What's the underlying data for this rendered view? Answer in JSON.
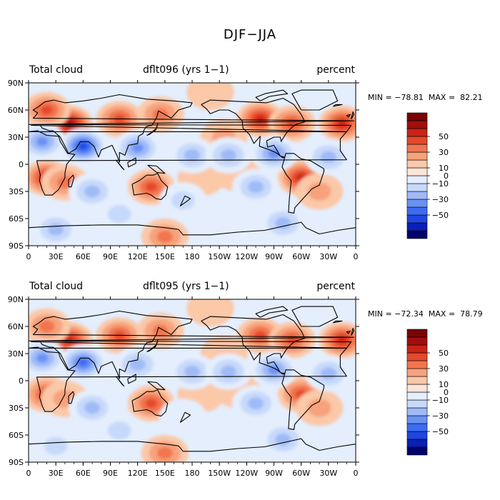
{
  "figure": {
    "title": "DJF−JJA"
  },
  "chart_data": [
    {
      "type": "heatmap",
      "panel": "top",
      "left_label": "Total cloud",
      "center_label": "dflt096 (yrs 1−1)",
      "right_label": "percent",
      "min_label": "MIN = −78.81",
      "max_label": "MAX =  82.21",
      "min": -78.81,
      "max": 82.21,
      "x_ticks": [
        "0",
        "30E",
        "60E",
        "90E",
        "120E",
        "150E",
        "180",
        "150W",
        "120W",
        "90W",
        "60W",
        "30W",
        "0"
      ],
      "y_ticks": [
        "90N",
        "60N",
        "30N",
        "0",
        "30S",
        "60S",
        "90S"
      ],
      "colorbar_ticks": [
        "50",
        "30",
        "10",
        "0",
        "−10",
        "−30",
        "−50"
      ],
      "features": [
        {
          "lon": 45,
          "lat": 45,
          "value": 60
        },
        {
          "lon": 20,
          "lat": 60,
          "value": 40
        },
        {
          "lon": 100,
          "lat": 50,
          "value": 45
        },
        {
          "lon": 145,
          "lat": 55,
          "value": 30
        },
        {
          "lon": 20,
          "lat": -15,
          "value": 50
        },
        {
          "lon": 40,
          "lat": -20,
          "value": 30
        },
        {
          "lon": 135,
          "lat": -25,
          "value": 45
        },
        {
          "lon": 300,
          "lat": -15,
          "value": 50
        },
        {
          "lon": 320,
          "lat": -30,
          "value": 25
        },
        {
          "lon": 255,
          "lat": 50,
          "value": 50
        },
        {
          "lon": 290,
          "lat": 45,
          "value": 40
        },
        {
          "lon": 345,
          "lat": 45,
          "value": 55
        },
        {
          "lon": 215,
          "lat": 30,
          "value": 20
        },
        {
          "lon": 190,
          "lat": -15,
          "value": 15
        },
        {
          "lon": 230,
          "lat": -10,
          "value": 12
        },
        {
          "lon": 60,
          "lat": 20,
          "value": -60
        },
        {
          "lon": 15,
          "lat": 25,
          "value": -45
        },
        {
          "lon": 120,
          "lat": 18,
          "value": -40
        },
        {
          "lon": 180,
          "lat": 10,
          "value": -35
        },
        {
          "lon": 220,
          "lat": 10,
          "value": -35
        },
        {
          "lon": 270,
          "lat": 12,
          "value": -40
        },
        {
          "lon": 330,
          "lat": 8,
          "value": -30
        },
        {
          "lon": 70,
          "lat": -30,
          "value": -35
        },
        {
          "lon": 250,
          "lat": -25,
          "value": -30
        },
        {
          "lon": 170,
          "lat": -40,
          "value": -20
        },
        {
          "lon": 100,
          "lat": -55,
          "value": -25
        },
        {
          "lon": 280,
          "lat": -65,
          "value": -30
        },
        {
          "lon": 30,
          "lat": -72,
          "value": -30
        },
        {
          "lon": 200,
          "lat": 80,
          "value": 12
        },
        {
          "lon": 150,
          "lat": -80,
          "value": 35
        }
      ]
    },
    {
      "type": "heatmap",
      "panel": "bottom",
      "left_label": "Total cloud",
      "center_label": "dflt095 (yrs 1−1)",
      "right_label": "percent",
      "min_label": "MIN = −72.34",
      "max_label": "MAX =  78.79",
      "min": -72.34,
      "max": 78.79,
      "x_ticks": [
        "0",
        "30E",
        "60E",
        "90E",
        "120E",
        "150E",
        "180",
        "150W",
        "120W",
        "90W",
        "60W",
        "30W",
        "0"
      ],
      "y_ticks": [
        "90N",
        "60N",
        "30N",
        "0",
        "30S",
        "60S",
        "90S"
      ],
      "colorbar_ticks": [
        "50",
        "30",
        "10",
        "0",
        "−10",
        "−30",
        "−50"
      ],
      "features": [
        {
          "lon": 45,
          "lat": 45,
          "value": 55
        },
        {
          "lon": 20,
          "lat": 60,
          "value": 35
        },
        {
          "lon": 100,
          "lat": 50,
          "value": 40
        },
        {
          "lon": 145,
          "lat": 55,
          "value": 30
        },
        {
          "lon": 20,
          "lat": -15,
          "value": 45
        },
        {
          "lon": 40,
          "lat": -20,
          "value": 28
        },
        {
          "lon": 135,
          "lat": -25,
          "value": 40
        },
        {
          "lon": 300,
          "lat": -15,
          "value": 45
        },
        {
          "lon": 320,
          "lat": -30,
          "value": 22
        },
        {
          "lon": 255,
          "lat": 50,
          "value": 45
        },
        {
          "lon": 290,
          "lat": 45,
          "value": 40
        },
        {
          "lon": 345,
          "lat": 45,
          "value": 50
        },
        {
          "lon": 215,
          "lat": 30,
          "value": 18
        },
        {
          "lon": 190,
          "lat": -15,
          "value": 15
        },
        {
          "lon": 230,
          "lat": -10,
          "value": 12
        },
        {
          "lon": 60,
          "lat": 20,
          "value": -55
        },
        {
          "lon": 15,
          "lat": 25,
          "value": -40
        },
        {
          "lon": 120,
          "lat": 18,
          "value": -35
        },
        {
          "lon": 180,
          "lat": 10,
          "value": -30
        },
        {
          "lon": 220,
          "lat": 10,
          "value": -35
        },
        {
          "lon": 270,
          "lat": 12,
          "value": -40
        },
        {
          "lon": 330,
          "lat": 8,
          "value": -30
        },
        {
          "lon": 70,
          "lat": -30,
          "value": -30
        },
        {
          "lon": 250,
          "lat": -25,
          "value": -30
        },
        {
          "lon": 170,
          "lat": -40,
          "value": -18
        },
        {
          "lon": 100,
          "lat": -55,
          "value": -22
        },
        {
          "lon": 280,
          "lat": -65,
          "value": -30
        },
        {
          "lon": 30,
          "lat": -72,
          "value": -28
        },
        {
          "lon": 200,
          "lat": 80,
          "value": 10
        },
        {
          "lon": 150,
          "lat": -80,
          "value": 30
        }
      ]
    }
  ],
  "colors": {
    "levels": [
      "#03036b",
      "#0a1fb5",
      "#1f46e0",
      "#3d6cf2",
      "#6a92f5",
      "#9fbaf7",
      "#c7d9fb",
      "#e4eefd",
      "#fde5d8",
      "#fbc8a8",
      "#f7a27c",
      "#f17650",
      "#e44a2c",
      "#c92317",
      "#a10e0e",
      "#790404"
    ],
    "ocean_bg": "#e4eefd"
  }
}
